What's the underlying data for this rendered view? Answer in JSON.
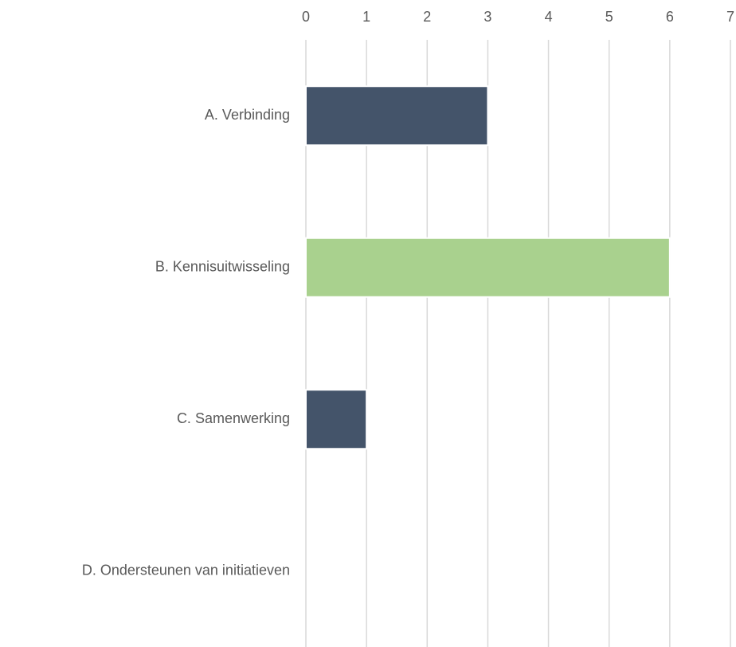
{
  "chart_data": {
    "type": "bar",
    "orientation": "horizontal",
    "categories": [
      "A. Verbinding",
      "B. Kennisuitwisseling",
      "C. Samenwerking",
      "D. Ondersteunen van initiatieven"
    ],
    "values": [
      3,
      6,
      1,
      0
    ],
    "colors": [
      "#44546a",
      "#a9d18e",
      "#44546a",
      "#44546a"
    ],
    "xlim": [
      0,
      7
    ],
    "xticks": [
      0,
      1,
      2,
      3,
      4,
      5,
      6,
      7
    ],
    "grid": true,
    "xaxis_position": "top"
  }
}
